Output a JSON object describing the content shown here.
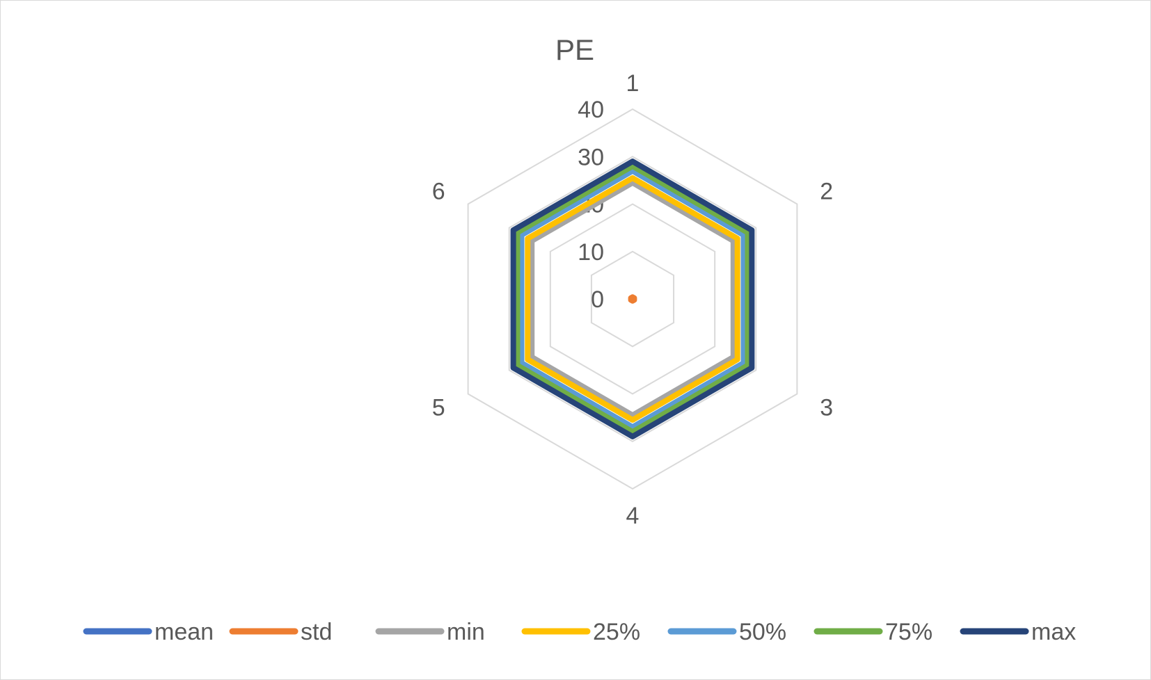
{
  "chart_data": {
    "type": "radar",
    "title": "PE",
    "categories": [
      "1",
      "2",
      "3",
      "4",
      "5",
      "6"
    ],
    "rlim": [
      0,
      40
    ],
    "ticks": [
      0,
      10,
      20,
      30,
      40
    ],
    "grid": true,
    "legend_position": "bottom",
    "series": [
      {
        "name": "mean",
        "color": "#4472C4",
        "values": [
          27,
          27,
          27,
          27,
          27,
          27
        ]
      },
      {
        "name": "std",
        "color": "#ED7D31",
        "values": [
          0.4,
          0.4,
          0.4,
          0.4,
          0.4,
          0.4
        ]
      },
      {
        "name": "min",
        "color": "#A5A5A5",
        "values": [
          24.5,
          24.5,
          24.5,
          24.5,
          24.5,
          24.5
        ]
      },
      {
        "name": "25%",
        "color": "#FFC000",
        "values": [
          25.5,
          25.5,
          25.5,
          25.5,
          25.5,
          25.5
        ]
      },
      {
        "name": "50%",
        "color": "#5B9BD5",
        "values": [
          27,
          27,
          27,
          27,
          27,
          27
        ]
      },
      {
        "name": "75%",
        "color": "#70AD47",
        "values": [
          28,
          28,
          28,
          28,
          28,
          28
        ]
      },
      {
        "name": "max",
        "color": "#264478",
        "values": [
          29,
          29,
          29,
          29,
          29,
          29
        ]
      }
    ]
  }
}
